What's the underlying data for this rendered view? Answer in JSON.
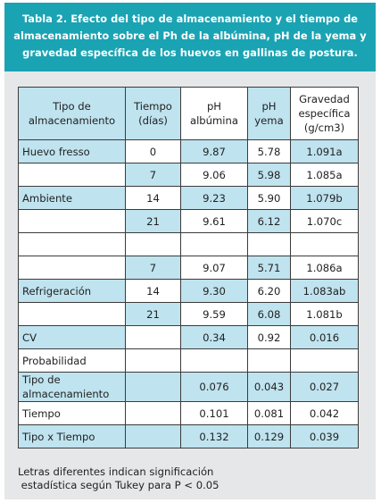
{
  "title_lines": [
    "Tabla 2. Efecto del tipo de almacenamiento y el tiempo de",
    "almacenamiento sobre el Ph de la albúmina, pH de la yema y",
    "gravedad específica de los huevos en gallinas de postura."
  ],
  "columns": [
    [
      "Tipo de",
      "almacenamiento"
    ],
    [
      "Tiempo",
      "(días)"
    ],
    [
      "pH",
      "albúmina"
    ],
    [
      "pH",
      "yema"
    ],
    [
      "Gravedad",
      "específica",
      "(g/cm3)"
    ]
  ],
  "rows": [
    {
      "cells": [
        "Huevo fresso",
        "0",
        "9.87",
        "5.78",
        "1.091a"
      ]
    },
    {
      "cells": [
        "",
        "7",
        "9.06",
        "5.98",
        "1.085a"
      ]
    },
    {
      "cells": [
        "Ambiente",
        "14",
        "9.23",
        "5.90",
        "1.079b"
      ]
    },
    {
      "cells": [
        "",
        "21",
        "9.61",
        "6.12",
        "1.070c"
      ]
    },
    {
      "cells": [
        "",
        "",
        "",
        "",
        ""
      ]
    },
    {
      "cells": [
        "",
        "7",
        "9.07",
        "5.71",
        "1.086a"
      ]
    },
    {
      "cells": [
        "Refrigeración",
        "14",
        "9.30",
        "6.20",
        "1.083ab"
      ]
    },
    {
      "cells": [
        "",
        "21",
        "9.59",
        "6.08",
        "1.081b"
      ]
    },
    {
      "cells": [
        "CV",
        "",
        "0.34",
        "0.92",
        "0.016"
      ]
    },
    {
      "cells": [
        "Probabilidad",
        "",
        "",
        "",
        ""
      ]
    },
    {
      "cells": [
        "Tipo de almacenamiento",
        "",
        "0.076",
        "0.043",
        "0.027"
      ]
    },
    {
      "cells": [
        "Tiempo",
        "",
        "0.101",
        "0.081",
        "0.042"
      ]
    },
    {
      "cells": [
        "Tipo x Tiempo",
        "",
        "0.132",
        "0.129",
        "0.039"
      ]
    }
  ],
  "note_lines": [
    "Letras diferentes indican significación",
    " estadística según Tukey para P < 0.05"
  ],
  "colors": {
    "header_bg": "#1aa3b3",
    "panel_bg": "#e6e7e8",
    "cell_blue": "#bfe3ef",
    "cell_white": "#ffffff"
  }
}
